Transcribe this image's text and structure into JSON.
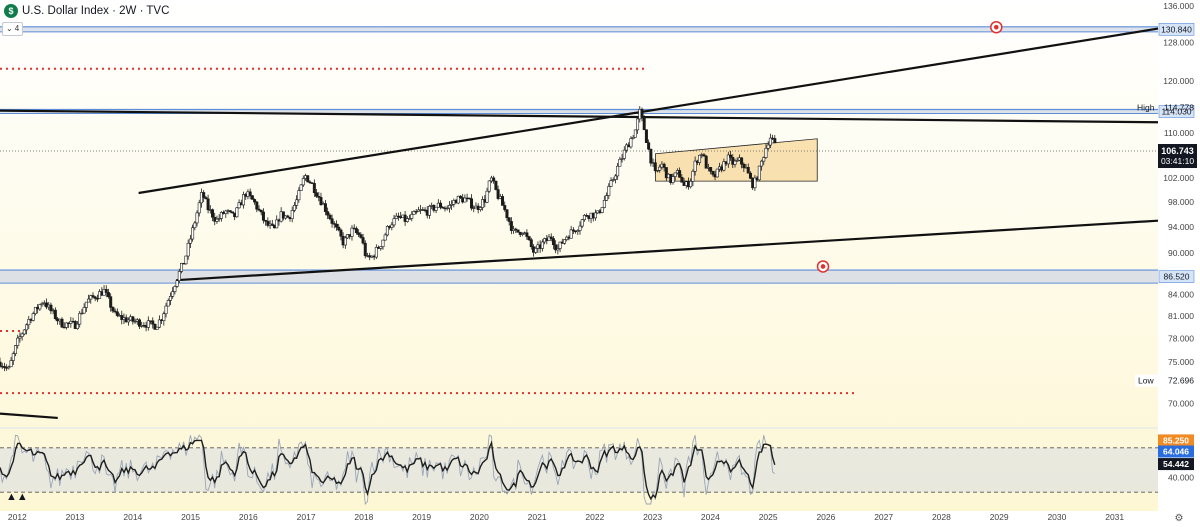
{
  "header": {
    "icon_letter": "$",
    "title": "U.S. Dollar Index · 2W · TVC",
    "collapse_label": "4"
  },
  "colors": {
    "background_top": "#ffffff",
    "background_bottom": "#fdf7d4",
    "band_blue": "#5b8dd9",
    "red_dots": "#e0312f",
    "candle": "#1b1b1b",
    "rectangle_fill": "#f7d79a",
    "price_box": "#131722",
    "rsi_fast": "#9aa6b8",
    "rsi_slow": "#1e1e1e",
    "overbought_box": "#f08a24",
    "blue_box": "#2a6ddf"
  },
  "chart_data": {
    "type": "candlestick",
    "symbol": "U.S. Dollar Index",
    "interval": "2W",
    "source": "TVC",
    "x_range": [
      2011.7,
      2031.75
    ],
    "y_range": [
      67.5,
      136.5
    ],
    "y_scale": "log",
    "x_ticks": [
      "2012",
      "2013",
      "2014",
      "2015",
      "2016",
      "2017",
      "2018",
      "2019",
      "2020",
      "2021",
      "2022",
      "2023",
      "2024",
      "2025",
      "2026",
      "2027",
      "2028",
      "2029",
      "2030",
      "2031"
    ],
    "y_ticks": [
      "136.000",
      "128.000",
      "120.000",
      "110.000",
      "102.000",
      "98.000",
      "94.000",
      "90.000",
      "84.000",
      "81.000",
      "78.000",
      "75.000",
      "70.000"
    ],
    "price_path": [
      [
        2011.7,
        75.0
      ],
      [
        2011.85,
        74.0
      ],
      [
        2012.0,
        77.5
      ],
      [
        2012.2,
        80.5
      ],
      [
        2012.45,
        83.2
      ],
      [
        2012.55,
        82.0
      ],
      [
        2012.75,
        80.0
      ],
      [
        2013.0,
        79.8
      ],
      [
        2013.2,
        83.0
      ],
      [
        2013.5,
        84.5
      ],
      [
        2013.7,
        81.0
      ],
      [
        2013.9,
        80.5
      ],
      [
        2014.2,
        80.0
      ],
      [
        2014.4,
        79.7
      ],
      [
        2014.5,
        80.8
      ],
      [
        2014.6,
        83.0
      ],
      [
        2014.75,
        86.0
      ],
      [
        2014.9,
        89.0
      ],
      [
        2015.05,
        94.0
      ],
      [
        2015.2,
        99.5
      ],
      [
        2015.3,
        97.0
      ],
      [
        2015.45,
        95.0
      ],
      [
        2015.6,
        96.5
      ],
      [
        2015.75,
        95.5
      ],
      [
        2015.95,
        99.5
      ],
      [
        2016.1,
        98.0
      ],
      [
        2016.3,
        94.5
      ],
      [
        2016.45,
        93.5
      ],
      [
        2016.55,
        96.0
      ],
      [
        2016.7,
        95.5
      ],
      [
        2016.85,
        98.5
      ],
      [
        2016.98,
        102.5
      ],
      [
        2017.1,
        101.0
      ],
      [
        2017.3,
        97.5
      ],
      [
        2017.5,
        94.0
      ],
      [
        2017.65,
        91.5
      ],
      [
        2017.8,
        93.5
      ],
      [
        2017.95,
        92.5
      ],
      [
        2018.05,
        89.0
      ],
      [
        2018.15,
        89.5
      ],
      [
        2018.3,
        91.5
      ],
      [
        2018.45,
        94.5
      ],
      [
        2018.6,
        95.5
      ],
      [
        2018.75,
        95.0
      ],
      [
        2018.95,
        96.5
      ],
      [
        2019.1,
        96.5
      ],
      [
        2019.3,
        97.5
      ],
      [
        2019.45,
        97.0
      ],
      [
        2019.6,
        98.5
      ],
      [
        2019.75,
        98.5
      ],
      [
        2019.95,
        97.0
      ],
      [
        2020.1,
        98.5
      ],
      [
        2020.2,
        102.0
      ],
      [
        2020.3,
        99.5
      ],
      [
        2020.45,
        96.5
      ],
      [
        2020.6,
        93.0
      ],
      [
        2020.75,
        93.5
      ],
      [
        2020.95,
        90.0
      ],
      [
        2021.1,
        91.5
      ],
      [
        2021.25,
        92.5
      ],
      [
        2021.35,
        90.5
      ],
      [
        2021.5,
        92.5
      ],
      [
        2021.7,
        94.0
      ],
      [
        2021.85,
        96.0
      ],
      [
        2022.05,
        96.0
      ],
      [
        2022.2,
        99.0
      ],
      [
        2022.4,
        104.0
      ],
      [
        2022.55,
        107.5
      ],
      [
        2022.7,
        110.5
      ],
      [
        2022.78,
        114.0
      ],
      [
        2022.85,
        111.0
      ],
      [
        2022.95,
        106.0
      ],
      [
        2023.05,
        102.5
      ],
      [
        2023.15,
        104.5
      ],
      [
        2023.3,
        101.5
      ],
      [
        2023.45,
        103.0
      ],
      [
        2023.55,
        100.5
      ],
      [
        2023.65,
        101.5
      ],
      [
        2023.75,
        105.0
      ],
      [
        2023.85,
        106.5
      ],
      [
        2023.95,
        103.5
      ],
      [
        2024.05,
        102.0
      ],
      [
        2024.2,
        104.0
      ],
      [
        2024.3,
        105.5
      ],
      [
        2024.4,
        104.5
      ],
      [
        2024.5,
        105.0
      ],
      [
        2024.6,
        104.0
      ],
      [
        2024.7,
        101.5
      ],
      [
        2024.75,
        100.8
      ],
      [
        2024.85,
        103.5
      ],
      [
        2024.95,
        107.0
      ],
      [
        2025.0,
        108.5
      ],
      [
        2025.05,
        109.5
      ],
      [
        2025.1,
        108.0
      ],
      [
        2025.15,
        106.743
      ]
    ],
    "trendlines": [
      {
        "from": [
          2011.7,
          114.2
        ],
        "to": [
          2031.75,
          112.0
        ]
      },
      {
        "from": [
          2014.1,
          99.5
        ],
        "to": [
          2031.75,
          131.0
        ]
      },
      {
        "from": [
          2014.75,
          86.0
        ],
        "to": [
          2031.75,
          95.0
        ]
      },
      {
        "from": [
          2011.7,
          68.8
        ],
        "to": [
          2012.7,
          68.3
        ]
      }
    ],
    "rectangle": {
      "x": [
        2023.05,
        2025.85
      ],
      "y": [
        101.5,
        107.5
      ]
    },
    "horizontal_levels": [
      {
        "value": 130.84,
        "label": "130.840"
      },
      {
        "value": 114.03,
        "label": "114.030"
      },
      {
        "value": 86.52,
        "label": "86.520"
      }
    ],
    "red_dotted_levels": [
      {
        "value": 122.5,
        "x": [
          2011.7,
          2022.9
        ]
      },
      {
        "value": 79.0,
        "x": [
          2011.7,
          2012.1
        ]
      },
      {
        "value": 71.2,
        "x": [
          2011.7,
          2026.55
        ]
      }
    ],
    "last_price": {
      "value": 106.743,
      "label": "106.743",
      "countdown": "03:41:10"
    },
    "high": {
      "label": "High",
      "value": "114.778"
    },
    "low": {
      "label": "Low",
      "value": "72.696"
    },
    "alerts": [
      {
        "x": 2028.95,
        "y": 131.3
      },
      {
        "x": 2025.95,
        "y": 88.0
      }
    ],
    "rsi": {
      "y_range": [
        0,
        100
      ],
      "levels": [
        80,
        20
      ],
      "y_tick": "40.000",
      "values": {
        "overbought": "85.250",
        "fast": "64.046",
        "slow": "54.442"
      }
    }
  }
}
